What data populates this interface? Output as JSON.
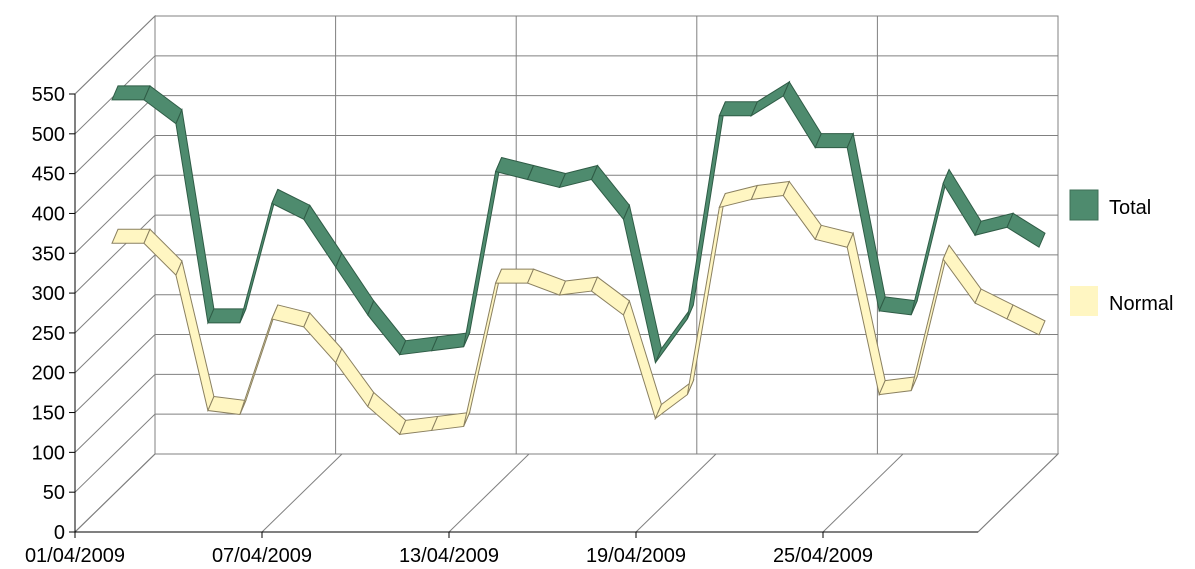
{
  "chart_data": {
    "type": "line",
    "style": "3d-ribbon",
    "x": [
      "01/04/2009",
      "02/04/2009",
      "03/04/2009",
      "04/04/2009",
      "05/04/2009",
      "06/04/2009",
      "07/04/2009",
      "08/04/2009",
      "09/04/2009",
      "10/04/2009",
      "11/04/2009",
      "12/04/2009",
      "13/04/2009",
      "14/04/2009",
      "15/04/2009",
      "16/04/2009",
      "17/04/2009",
      "18/04/2009",
      "19/04/2009",
      "20/04/2009",
      "21/04/2009",
      "22/04/2009",
      "23/04/2009",
      "24/04/2009",
      "25/04/2009",
      "26/04/2009",
      "27/04/2009",
      "28/04/2009",
      "29/04/2009",
      "30/04/2009"
    ],
    "x_tick_labels": [
      "01/04/2009",
      "07/04/2009",
      "13/04/2009",
      "19/04/2009",
      "25/04/2009"
    ],
    "y_ticks": [
      0,
      50,
      100,
      150,
      200,
      250,
      300,
      350,
      400,
      450,
      500,
      550
    ],
    "ylim": [
      0,
      550
    ],
    "grid": true,
    "legend_position": "right",
    "title": "",
    "xlabel": "",
    "ylabel": "",
    "series": [
      {
        "name": "Total",
        "color": "#4E8B6E",
        "values": [
          510,
          510,
          480,
          230,
          230,
          380,
          360,
          300,
          240,
          190,
          195,
          200,
          420,
          410,
          400,
          410,
          360,
          180,
          235,
          490,
          490,
          515,
          450,
          450,
          245,
          240,
          405,
          340,
          350,
          325
        ]
      },
      {
        "name": "Normal",
        "color": "#FFF6C2",
        "values": [
          355,
          355,
          315,
          145,
          140,
          260,
          250,
          205,
          150,
          115,
          120,
          125,
          305,
          305,
          290,
          295,
          265,
          135,
          165,
          400,
          410,
          415,
          360,
          350,
          165,
          170,
          335,
          280,
          260,
          240
        ]
      }
    ]
  },
  "legend": {
    "total_label": "Total",
    "normal_label": "Normal"
  }
}
